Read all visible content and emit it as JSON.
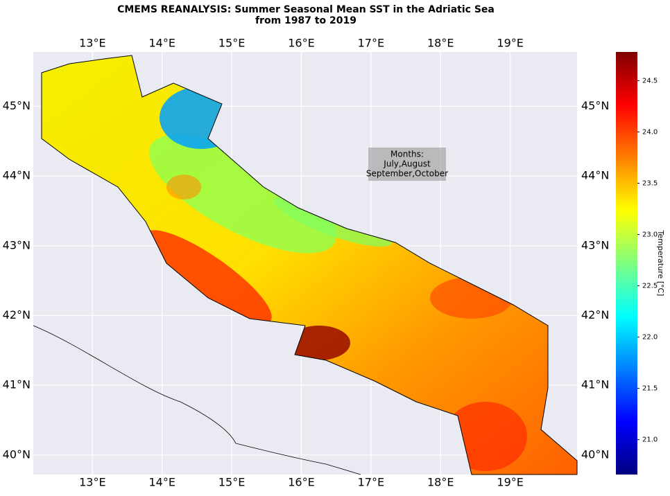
{
  "chart_data": {
    "type": "map",
    "title": [
      "CMEMS REANALYSIS: Summer Seasonal Mean SST in the Adriatic Sea",
      "from 1987 to 2019"
    ],
    "annotation": [
      "Months:",
      "July,August",
      "September,October"
    ],
    "xlim": [
      12.15,
      19.96
    ],
    "ylim": [
      39.72,
      45.78
    ],
    "xticks": [
      {
        "value": 13,
        "label": "13°E"
      },
      {
        "value": 14,
        "label": "14°E"
      },
      {
        "value": 15,
        "label": "15°E"
      },
      {
        "value": 16,
        "label": "16°E"
      },
      {
        "value": 17,
        "label": "17°E"
      },
      {
        "value": 18,
        "label": "18°E"
      },
      {
        "value": 19,
        "label": "19°E"
      }
    ],
    "yticks": [
      {
        "value": 40,
        "label": "40°N"
      },
      {
        "value": 41,
        "label": "41°N"
      },
      {
        "value": 42,
        "label": "42°N"
      },
      {
        "value": 43,
        "label": "43°N"
      },
      {
        "value": 44,
        "label": "44°N"
      },
      {
        "value": 45,
        "label": "45°N"
      }
    ],
    "grid": true,
    "colorbar": {
      "label": "Temperature [°C]",
      "lim": [
        20.66,
        24.78
      ],
      "ticks": [
        {
          "value": 21,
          "label": "21.0"
        },
        {
          "value": 21.5,
          "label": "21.5"
        },
        {
          "value": 22,
          "label": "22.0"
        },
        {
          "value": 22.5,
          "label": "22.5"
        },
        {
          "value": 23,
          "label": "23.0"
        },
        {
          "value": 23.5,
          "label": "23.5"
        },
        {
          "value": 24,
          "label": "24.0"
        },
        {
          "value": 24.5,
          "label": "24.5"
        }
      ]
    }
  }
}
